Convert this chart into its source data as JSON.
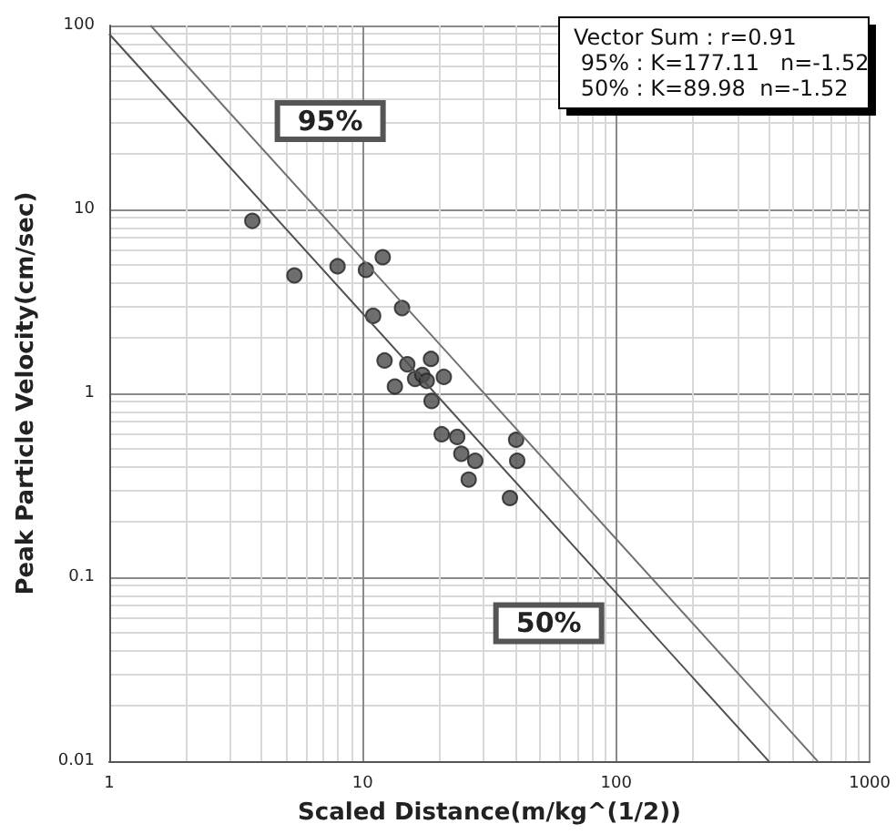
{
  "chart_data": {
    "type": "scatter",
    "xlabel": "Scaled Distance(m/kg^(1/2))",
    "ylabel": "Peak Particle Velocity(cm/sec)",
    "log": "xy",
    "grid": true,
    "xlim": [
      1,
      1000
    ],
    "xticks": [
      1,
      10,
      100,
      1000
    ],
    "ylim": [
      0.01,
      100
    ],
    "yticks": [
      0.01,
      0.1,
      1,
      10,
      100
    ],
    "series": [
      {
        "marker": "circle",
        "color": "#4a4a4a",
        "x": [
          3.67,
          5.38,
          7.96,
          10.3,
          12.0,
          11.0,
          14.3,
          12.2,
          15.0,
          18.6,
          13.4,
          16.1,
          17.2,
          17.9,
          20.9,
          18.7,
          20.5,
          23.6,
          24.5,
          27.8,
          26.2,
          40.3,
          40.7,
          38.1
        ],
        "values": [
          8.67,
          4.38,
          4.91,
          4.69,
          5.5,
          2.64,
          2.91,
          1.51,
          1.44,
          1.54,
          1.09,
          1.2,
          1.26,
          1.17,
          1.23,
          0.91,
          0.6,
          0.58,
          0.47,
          0.43,
          0.34,
          0.56,
          0.43,
          0.27
        ]
      },
      {
        "type": "line",
        "marker": "none",
        "name": "95%",
        "color": "#707070",
        "x": [
          1.457,
          624
        ],
        "values": [
          100,
          0.01
        ]
      },
      {
        "type": "line",
        "marker": "none",
        "name": "50%",
        "color": "#505050",
        "x": [
          1,
          400
        ],
        "values": [
          89.98,
          0.01
        ]
      }
    ],
    "annotations": [
      "Vector Sum : r=0.91",
      " 95% : K=177.11   n=-1.52",
      " 50% : K=89.98  n=-1.52"
    ]
  }
}
